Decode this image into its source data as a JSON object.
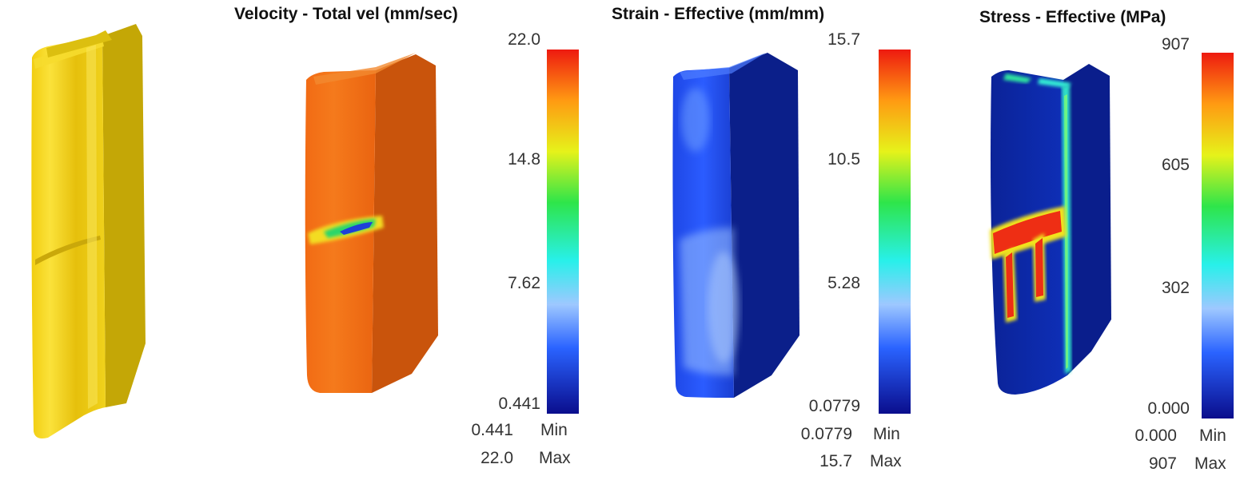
{
  "panels": [
    {
      "id": "geometry",
      "part_color": "#e0c30e",
      "side_color": "#c2a706"
    },
    {
      "id": "velocity",
      "title": "Velocity - Total vel (mm/sec)",
      "ticks": [
        "22.0",
        "14.8",
        "7.62",
        "0.441"
      ],
      "min_value": "0.441",
      "max_value": "22.0",
      "min_label": "Min",
      "max_label": "Max",
      "part_color": "#ee6412",
      "side_color": "#c9550c"
    },
    {
      "id": "strain",
      "title": "Strain - Effective (mm/mm)",
      "ticks": [
        "15.7",
        "10.5",
        "5.28",
        "0.0779"
      ],
      "min_value": "0.0779",
      "max_value": "15.7",
      "min_label": "Min",
      "max_label": "Max",
      "part_color": "#1b3fd8",
      "side_color": "#0b1f8a"
    },
    {
      "id": "stress",
      "title": "Stress - Effective (MPa)",
      "ticks": [
        "907",
        "605",
        "302",
        "0.000"
      ],
      "min_value": "0.000",
      "max_value": "907",
      "min_label": "Min",
      "max_label": "Max",
      "part_color": "#0e2fb8",
      "side_color": "#0a1e8c"
    }
  ],
  "colormap": [
    "#0a0d8c",
    "#2a63ff",
    "#9ec8ff",
    "#28f0ea",
    "#2ee54a",
    "#e6f21a",
    "#ff9a12",
    "#ee1a10"
  ]
}
